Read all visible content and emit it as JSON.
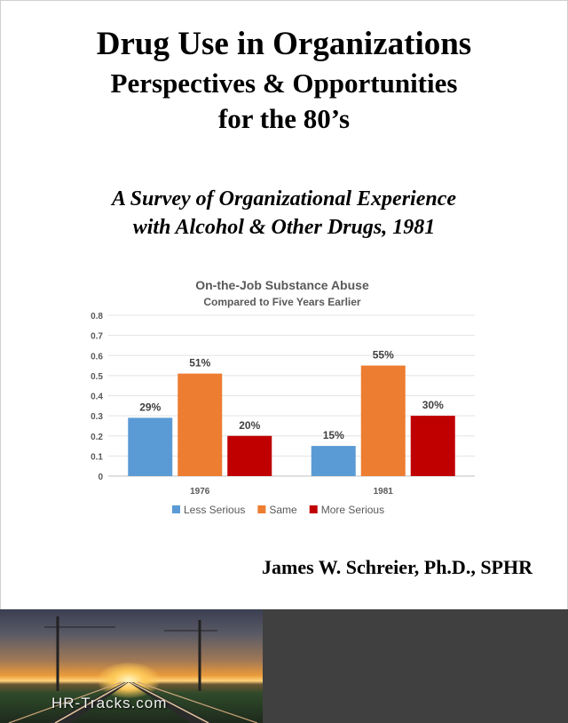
{
  "cover": {
    "title_line1": "Drug Use in Organizations",
    "title_line2": "Perspectives & Opportunities",
    "title_line3": "for the 80’s",
    "subtitle_line1": "A Survey of Organizational Experience",
    "subtitle_line2": "with Alcohol & Other Drugs, 1981",
    "author": "James W. Schreier, Ph.D., SPHR",
    "logo_text": "HR-Tracks.com"
  },
  "colors": {
    "less_serious": "#5B9BD5",
    "same": "#ED7D31",
    "more_serious": "#C00000",
    "dark_panel": "#404040"
  },
  "chart_data": {
    "type": "bar",
    "title": "On-the-Job Substance Abuse",
    "subtitle": "Compared to Five Years Earlier",
    "categories": [
      "1976",
      "1981"
    ],
    "series": [
      {
        "name": "Less Serious",
        "values": [
          0.29,
          0.15
        ],
        "labels": [
          "29%",
          "15%"
        ],
        "color": "#5B9BD5"
      },
      {
        "name": "Same",
        "values": [
          0.51,
          0.55
        ],
        "labels": [
          "51%",
          "55%"
        ],
        "color": "#ED7D31"
      },
      {
        "name": "More Serious",
        "values": [
          0.2,
          0.3
        ],
        "labels": [
          "20%",
          "30%"
        ],
        "color": "#C00000"
      }
    ],
    "ylim": [
      0,
      0.8
    ],
    "yticks": [
      "0",
      "0.1",
      "0.2",
      "0.3",
      "0.4",
      "0.5",
      "0.6",
      "0.7",
      "0.8"
    ],
    "grid": true,
    "legend": "bottom"
  }
}
